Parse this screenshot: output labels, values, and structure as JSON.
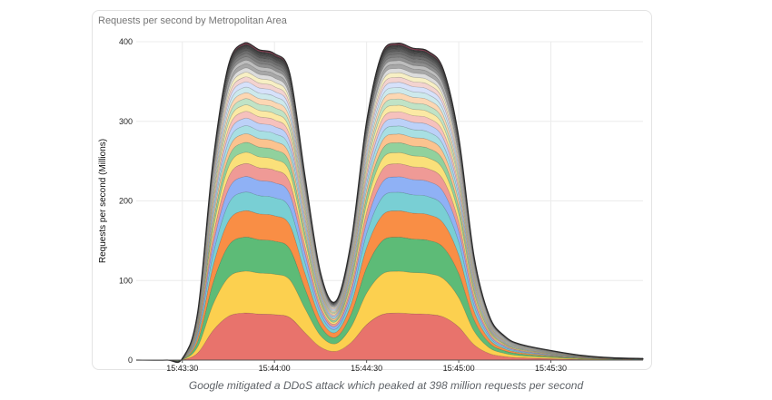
{
  "caption": "Google mitigated a DDoS attack which peaked at 398 million requests per second",
  "chart_data": {
    "type": "area",
    "stacked": true,
    "title": "Requests per second by Metropolitan Area",
    "xlabel": "",
    "ylabel": "Requests per second (Millions)",
    "ylim": [
      0,
      400
    ],
    "yticks": [
      0,
      100,
      200,
      300,
      400
    ],
    "xlim": [
      "15:43:15",
      "15:46:00"
    ],
    "xticks": [
      "15:43:30",
      "15:44:00",
      "15:44:30",
      "15:45:00",
      "15:45:30"
    ],
    "grid": true,
    "legend": "none",
    "x": [
      "15:43:15",
      "15:43:25",
      "15:43:30",
      "15:43:35",
      "15:43:40",
      "15:43:45",
      "15:43:50",
      "15:43:55",
      "15:44:00",
      "15:44:05",
      "15:44:10",
      "15:44:15",
      "15:44:20",
      "15:44:25",
      "15:44:30",
      "15:44:35",
      "15:44:40",
      "15:44:45",
      "15:44:50",
      "15:44:55",
      "15:45:00",
      "15:45:05",
      "15:45:10",
      "15:45:15",
      "15:45:20",
      "15:45:30",
      "15:45:40",
      "15:45:50",
      "15:46:00"
    ],
    "total": [
      0,
      0,
      2,
      60,
      250,
      370,
      398,
      390,
      385,
      360,
      230,
      110,
      74,
      150,
      300,
      385,
      398,
      392,
      388,
      365,
      280,
      130,
      55,
      30,
      20,
      12,
      6,
      3,
      2
    ],
    "series_colors": [
      "#e8736c",
      "#fcd04f",
      "#5dbb77",
      "#f98e45",
      "#79cfd4",
      "#8fb1f5",
      "#ef9a96",
      "#fae07a",
      "#91d19d",
      "#fbc38f",
      "#a8dfe3",
      "#bcd1f8",
      "#f6c1bd",
      "#fbe9a4",
      "#c0e3c6",
      "#fcd7b3",
      "#cde9ec",
      "#d6e1fa",
      "#f3d3d0",
      "#f7efc4",
      "#dcdcdc",
      "#a7a7a7",
      "#bdbdbd",
      "#8e8e8e",
      "#7d7d7d",
      "#6d6d6d",
      "#5a5a5a",
      "#4a4a4a",
      "#3c3c3c",
      "#8a3d52"
    ],
    "series_shares": [
      0.152,
      0.135,
      0.11,
      0.085,
      0.06,
      0.05,
      0.042,
      0.036,
      0.032,
      0.028,
      0.026,
      0.024,
      0.022,
      0.021,
      0.02,
      0.019,
      0.018,
      0.017,
      0.016,
      0.015,
      0.014,
      0.013,
      0.012,
      0.011,
      0.01,
      0.009,
      0.008,
      0.007,
      0.006,
      0.005
    ]
  }
}
